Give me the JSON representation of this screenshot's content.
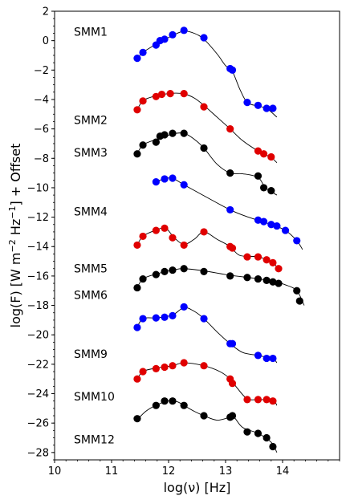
{
  "chart_data": {
    "type": "scatter",
    "title": "",
    "xlabel": "log(ν) [Hz]",
    "ylabel_main": "log(F) [W m",
    "ylabel_exp1": "−2",
    "ylabel_mid": " Hz",
    "ylabel_exp2": "−1",
    "ylabel_tail": "]  + Offset",
    "xlim": [
      10,
      15
    ],
    "ylim": [
      -28.5,
      2
    ],
    "x_ticks": [
      10,
      11,
      12,
      13,
      14
    ],
    "y_ticks": [
      2,
      0,
      -2,
      -4,
      -6,
      -8,
      -10,
      -12,
      -14,
      -16,
      -18,
      -20,
      -22,
      -24,
      -26,
      -28
    ],
    "grid": false,
    "legend": "none",
    "colors": {
      "blue": "#0000ff",
      "red": "#e00000",
      "black": "#000000"
    },
    "series": [
      {
        "name": "SMM1",
        "color": "blue",
        "label_y": 0.6,
        "x": [
          11.45,
          11.55,
          11.78,
          11.85,
          11.93,
          12.07,
          12.27,
          12.62,
          13.08,
          13.12,
          13.38,
          13.57,
          13.72,
          13.83
        ],
        "y": [
          -1.2,
          -0.8,
          -0.3,
          0.0,
          0.1,
          0.4,
          0.7,
          0.2,
          -1.9,
          -2.0,
          -4.2,
          -4.4,
          -4.6,
          -4.6
        ],
        "curve": [
          [
            11.42,
            -1.35
          ],
          [
            11.55,
            -0.8
          ],
          [
            11.8,
            -0.2
          ],
          [
            12.07,
            0.35
          ],
          [
            12.27,
            0.65
          ],
          [
            12.45,
            0.5
          ],
          [
            12.62,
            0.1
          ],
          [
            12.85,
            -0.9
          ],
          [
            13.0,
            -1.7
          ],
          [
            13.12,
            -2.1
          ],
          [
            13.25,
            -3.3
          ],
          [
            13.38,
            -4.2
          ],
          [
            13.57,
            -4.45
          ],
          [
            13.72,
            -4.6
          ],
          [
            13.9,
            -5.2
          ]
        ]
      },
      {
        "name": "SMM2",
        "color": "red",
        "label_y": -5.4,
        "x": [
          11.45,
          11.55,
          11.78,
          11.88,
          12.03,
          12.27,
          12.62,
          13.08,
          13.57,
          13.67,
          13.8
        ],
        "y": [
          -4.7,
          -4.1,
          -3.8,
          -3.65,
          -3.6,
          -3.6,
          -4.5,
          -6.0,
          -7.5,
          -7.7,
          -7.9
        ],
        "curve": [
          [
            11.42,
            -4.9
          ],
          [
            11.55,
            -4.1
          ],
          [
            11.78,
            -3.75
          ],
          [
            12.05,
            -3.58
          ],
          [
            12.27,
            -3.62
          ],
          [
            12.45,
            -3.9
          ],
          [
            12.62,
            -4.4
          ],
          [
            12.85,
            -5.2
          ],
          [
            13.08,
            -6.0
          ],
          [
            13.3,
            -6.8
          ],
          [
            13.57,
            -7.5
          ],
          [
            13.8,
            -7.95
          ],
          [
            13.9,
            -8.3
          ]
        ]
      },
      {
        "name": "SMM3",
        "color": "black",
        "label_y": -7.6,
        "x": [
          11.45,
          11.55,
          11.78,
          11.85,
          11.93,
          12.07,
          12.27,
          12.62,
          13.08,
          13.57,
          13.67,
          13.8
        ],
        "y": [
          -7.7,
          -7.1,
          -6.9,
          -6.5,
          -6.4,
          -6.3,
          -6.3,
          -7.3,
          -9.0,
          -9.2,
          -10.0,
          -10.2
        ],
        "curve": [
          [
            11.42,
            -7.9
          ],
          [
            11.55,
            -7.1
          ],
          [
            11.8,
            -6.7
          ],
          [
            12.07,
            -6.35
          ],
          [
            12.27,
            -6.3
          ],
          [
            12.45,
            -6.7
          ],
          [
            12.62,
            -7.3
          ],
          [
            12.85,
            -8.4
          ],
          [
            13.08,
            -9.0
          ],
          [
            13.3,
            -9.05
          ],
          [
            13.57,
            -9.3
          ],
          [
            13.7,
            -10.0
          ],
          [
            13.9,
            -10.5
          ]
        ]
      },
      {
        "name": "SMM4",
        "color": "blue",
        "label_y": -11.6,
        "x": [
          11.78,
          11.93,
          12.07,
          12.27,
          13.08,
          13.57,
          13.67,
          13.8,
          13.9,
          14.05,
          14.25
        ],
        "y": [
          -9.6,
          -9.4,
          -9.35,
          -9.8,
          -11.5,
          -12.2,
          -12.3,
          -12.5,
          -12.6,
          -12.9,
          -13.6
        ],
        "curve": [
          [
            11.75,
            -9.6
          ],
          [
            11.93,
            -9.4
          ],
          [
            12.07,
            -9.35
          ],
          [
            12.27,
            -9.8
          ],
          [
            12.6,
            -10.5
          ],
          [
            13.08,
            -11.5
          ],
          [
            13.4,
            -12.0
          ],
          [
            13.8,
            -12.5
          ],
          [
            14.05,
            -12.9
          ],
          [
            14.25,
            -13.6
          ],
          [
            14.35,
            -14.2
          ]
        ]
      },
      {
        "name": "SMM5",
        "color": "red",
        "label_y": -15.5,
        "x": [
          11.45,
          11.55,
          11.78,
          11.93,
          12.07,
          12.27,
          12.62,
          13.08,
          13.12,
          13.38,
          13.57,
          13.72,
          13.83,
          13.93
        ],
        "y": [
          -13.9,
          -13.3,
          -12.9,
          -12.75,
          -13.4,
          -13.9,
          -13.0,
          -14.0,
          -14.1,
          -14.7,
          -14.7,
          -14.9,
          -15.1,
          -15.5
        ],
        "curve": [
          [
            11.42,
            -14.1
          ],
          [
            11.55,
            -13.3
          ],
          [
            11.8,
            -12.85
          ],
          [
            11.95,
            -12.75
          ],
          [
            12.1,
            -13.4
          ],
          [
            12.27,
            -13.85
          ],
          [
            12.45,
            -13.5
          ],
          [
            12.62,
            -13.0
          ],
          [
            12.85,
            -13.5
          ],
          [
            13.08,
            -14.0
          ],
          [
            13.25,
            -14.6
          ],
          [
            13.57,
            -14.7
          ],
          [
            13.83,
            -15.1
          ],
          [
            13.95,
            -15.7
          ]
        ]
      },
      {
        "name": "SMM6",
        "color": "black",
        "label_y": -17.3,
        "x": [
          11.45,
          11.55,
          11.78,
          11.93,
          12.07,
          12.27,
          12.62,
          13.08,
          13.38,
          13.57,
          13.72,
          13.83,
          13.93,
          14.25,
          14.3
        ],
        "y": [
          -16.8,
          -16.2,
          -15.9,
          -15.7,
          -15.6,
          -15.5,
          -15.7,
          -16.0,
          -16.1,
          -16.2,
          -16.3,
          -16.4,
          -16.5,
          -17.0,
          -17.7
        ],
        "curve": [
          [
            11.42,
            -17.0
          ],
          [
            11.55,
            -16.2
          ],
          [
            11.8,
            -15.85
          ],
          [
            12.07,
            -15.6
          ],
          [
            12.27,
            -15.5
          ],
          [
            12.62,
            -15.65
          ],
          [
            13.08,
            -15.95
          ],
          [
            13.5,
            -16.15
          ],
          [
            13.83,
            -16.35
          ],
          [
            14.05,
            -16.6
          ],
          [
            14.25,
            -17.0
          ],
          [
            14.38,
            -18.0
          ]
        ]
      },
      {
        "name": "SMM9",
        "color": "blue",
        "label_y": -21.3,
        "x": [
          11.45,
          11.55,
          11.78,
          11.93,
          12.07,
          12.27,
          12.62,
          13.08,
          13.12,
          13.57,
          13.72,
          13.83
        ],
        "y": [
          -19.5,
          -18.9,
          -18.85,
          -18.8,
          -18.7,
          -18.1,
          -18.9,
          -20.6,
          -20.6,
          -21.4,
          -21.6,
          -21.6
        ],
        "curve": [
          [
            11.42,
            -19.7
          ],
          [
            11.55,
            -18.9
          ],
          [
            11.8,
            -18.85
          ],
          [
            12.07,
            -18.65
          ],
          [
            12.27,
            -18.15
          ],
          [
            12.45,
            -18.4
          ],
          [
            12.62,
            -18.9
          ],
          [
            12.85,
            -19.8
          ],
          [
            13.08,
            -20.6
          ],
          [
            13.3,
            -21.2
          ],
          [
            13.57,
            -21.4
          ],
          [
            13.83,
            -21.65
          ],
          [
            13.9,
            -21.9
          ]
        ]
      },
      {
        "name": "SMM10",
        "color": "red",
        "label_y": -24.2,
        "x": [
          11.45,
          11.55,
          11.78,
          11.93,
          12.07,
          12.27,
          12.62,
          13.08,
          13.12,
          13.38,
          13.57,
          13.72,
          13.83
        ],
        "y": [
          -23.0,
          -22.5,
          -22.3,
          -22.2,
          -22.1,
          -21.9,
          -22.1,
          -23.0,
          -23.3,
          -24.4,
          -24.4,
          -24.4,
          -24.5
        ],
        "curve": [
          [
            11.42,
            -23.2
          ],
          [
            11.55,
            -22.5
          ],
          [
            11.8,
            -22.25
          ],
          [
            12.07,
            -22.1
          ],
          [
            12.27,
            -21.9
          ],
          [
            12.62,
            -22.1
          ],
          [
            12.9,
            -22.5
          ],
          [
            13.08,
            -23.0
          ],
          [
            13.2,
            -23.6
          ],
          [
            13.38,
            -24.35
          ],
          [
            13.57,
            -24.4
          ],
          [
            13.83,
            -24.45
          ],
          [
            13.9,
            -24.8
          ]
        ]
      },
      {
        "name": "SMM12",
        "color": "black",
        "label_y": -27.1,
        "x": [
          11.45,
          11.78,
          11.93,
          12.07,
          12.27,
          12.62,
          13.08,
          13.12,
          13.38,
          13.57,
          13.72,
          13.83
        ],
        "y": [
          -25.7,
          -24.8,
          -24.5,
          -24.5,
          -24.8,
          -25.5,
          -25.6,
          -25.5,
          -26.6,
          -26.7,
          -27.0,
          -27.6
        ],
        "curve": [
          [
            11.42,
            -25.9
          ],
          [
            11.6,
            -25.2
          ],
          [
            11.8,
            -24.75
          ],
          [
            12.0,
            -24.5
          ],
          [
            12.15,
            -24.55
          ],
          [
            12.27,
            -24.8
          ],
          [
            12.45,
            -25.2
          ],
          [
            12.62,
            -25.5
          ],
          [
            12.85,
            -25.8
          ],
          [
            13.08,
            -25.6
          ],
          [
            13.15,
            -25.6
          ],
          [
            13.3,
            -26.3
          ],
          [
            13.57,
            -26.7
          ],
          [
            13.8,
            -27.3
          ],
          [
            13.9,
            -28.0
          ]
        ]
      }
    ]
  }
}
